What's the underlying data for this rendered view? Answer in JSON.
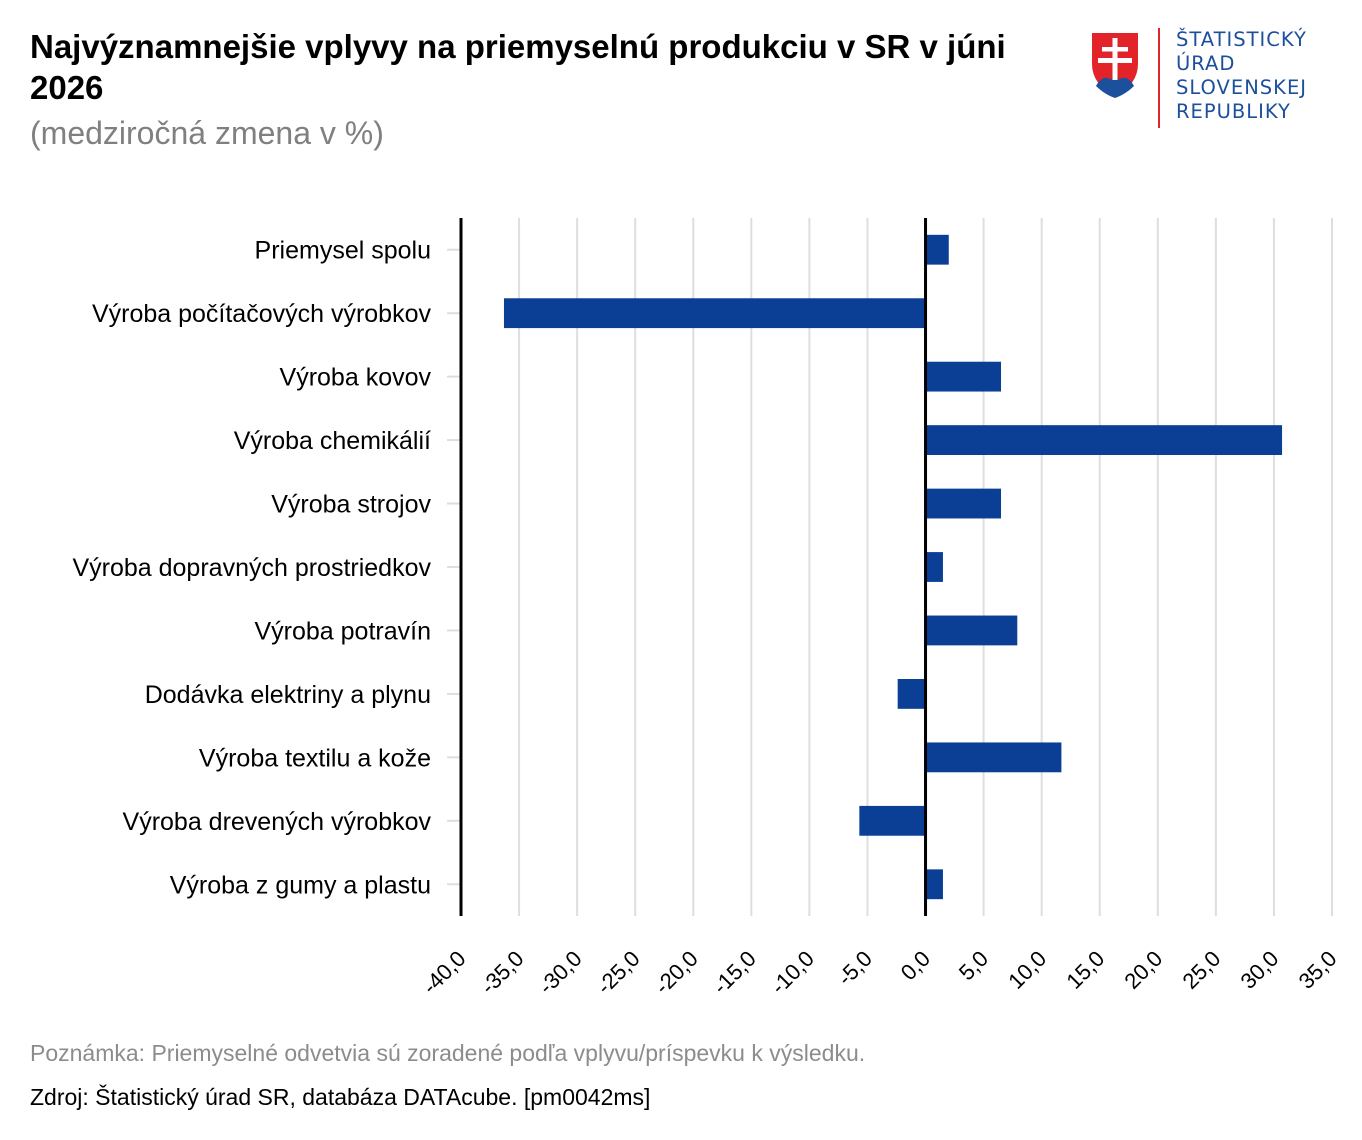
{
  "header": {
    "title": "Najvýznamnejšie vplyvy na priemyselnú produkciu v SR v júni 2026",
    "subtitle": "(medziročná zmena v %)"
  },
  "logo": {
    "lines": [
      "ŠTATISTICKÝ",
      "ÚRAD",
      "SLOVENSKEJ",
      "REPUBLIKY"
    ],
    "icon": "slovak-coat-of-arms-icon"
  },
  "footer": {
    "note": "Poznámka: Priemyselné odvetvia sú zoradené podľa vplyvu/príspevku k výsledku.",
    "source": "Zdroj: Štatistický úrad SR, databáza DATAcube.  [pm0042ms]"
  },
  "colors": {
    "bar": "#0b3f96",
    "grid": "#dedede",
    "axis": "#000000"
  },
  "chart_data": {
    "type": "bar",
    "orientation": "horizontal",
    "categories": [
      "Priemysel spolu",
      "Výroba počítačových výrobkov",
      "Výroba kovov",
      "Výroba chemikálií",
      "Výroba strojov",
      "Výroba dopravných prostriedkov",
      "Výroba potravín",
      "Dodávka elektriny a plynu",
      "Výroba textilu a kože",
      "Výroba drevených výrobkov",
      "Výroba z gumy a plastu"
    ],
    "values": [
      2.0,
      -36.3,
      6.5,
      30.7,
      6.5,
      1.5,
      7.9,
      -2.4,
      11.7,
      -5.7,
      1.5
    ],
    "xlim": [
      -40,
      35
    ],
    "xticks": [
      "-40,0",
      "-35,0",
      "-30,0",
      "-25,0",
      "-20,0",
      "-15,0",
      "-10,0",
      "-5,0",
      "0,0",
      "5,0",
      "10,0",
      "15,0",
      "20,0",
      "25,0",
      "30,0",
      "35,0"
    ],
    "xlabel": "",
    "ylabel": "",
    "grid": "vertical",
    "legend": "none"
  }
}
